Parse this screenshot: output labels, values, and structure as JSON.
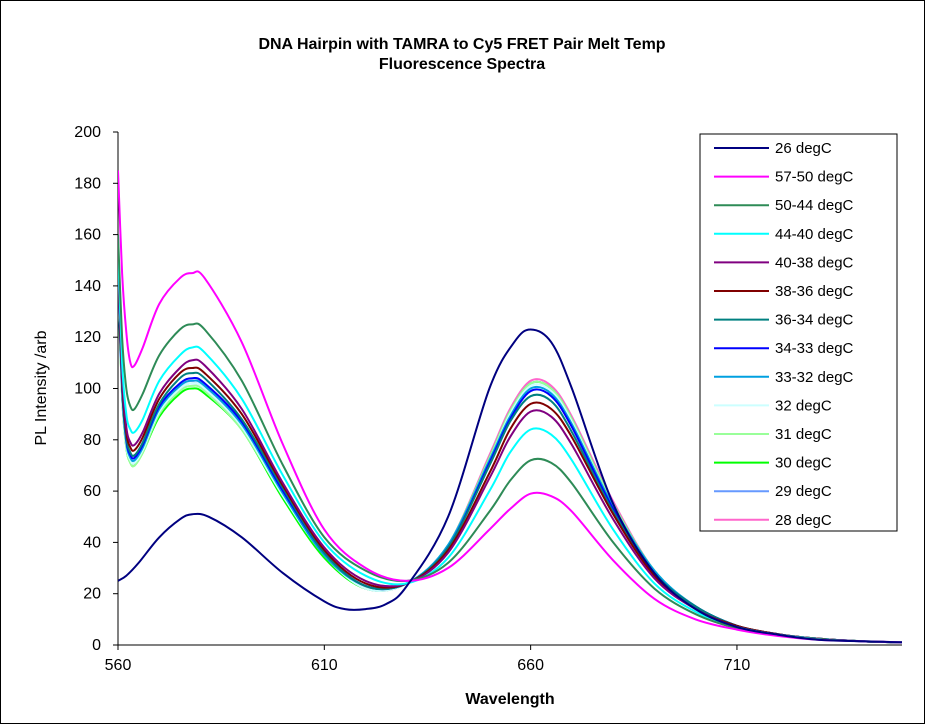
{
  "chart_data": {
    "type": "line",
    "title_line1": "DNA Hairpin  with  TAMRA  to Cy5 FRET Pair Melt Temp",
    "title_line2": "Fluorescence  Spectra",
    "xlabel": "Wavelength",
    "ylabel": "PL Intensity /arb",
    "xlim": [
      560,
      750
    ],
    "ylim": [
      0,
      200
    ],
    "x_ticks": [
      "560",
      "610",
      "660",
      "710"
    ],
    "y_ticks": [
      "0",
      "20",
      "40",
      "60",
      "80",
      "100",
      "120",
      "140",
      "160",
      "180",
      "200"
    ],
    "legend_position": "top-right",
    "grid": false,
    "series": [
      {
        "name": "26 degC",
        "color": "#000080",
        "x": [
          560,
          562,
          565,
          570,
          575,
          578,
          582,
          590,
          600,
          610,
          615,
          620,
          625,
          630,
          640,
          650,
          656,
          660,
          665,
          670,
          680,
          690,
          700,
          710,
          720,
          730,
          740,
          750
        ],
        "y": [
          25,
          27,
          32,
          42,
          49,
          51,
          50,
          42,
          28,
          17,
          14,
          14,
          16,
          23,
          50,
          100,
          118,
          123,
          118,
          100,
          55,
          28,
          14,
          7,
          4,
          2,
          1.5,
          1
        ]
      },
      {
        "name": "57-50 degC",
        "color": "#FF00FF",
        "x": [
          560,
          561,
          562,
          563,
          564,
          566,
          570,
          575,
          578,
          581,
          590,
          600,
          610,
          620,
          630,
          640,
          650,
          655,
          660,
          665,
          670,
          680,
          690,
          700,
          710,
          720,
          730,
          740,
          750
        ],
        "y": [
          185,
          145,
          122,
          110,
          109,
          116,
          133,
          143,
          145,
          143,
          118,
          78,
          45,
          30,
          25,
          30,
          45,
          53,
          59,
          58,
          52,
          33,
          18,
          10,
          6,
          3.5,
          2,
          1.5,
          1
        ]
      },
      {
        "name": "50-44 degC",
        "color": "#2E8B57",
        "x": [
          560,
          561,
          562,
          563,
          564,
          566,
          570,
          575,
          578,
          581,
          590,
          600,
          610,
          620,
          630,
          640,
          650,
          655,
          660,
          665,
          670,
          680,
          690,
          700,
          710,
          720,
          730,
          740,
          750
        ],
        "y": [
          160,
          120,
          100,
          93,
          92,
          98,
          113,
          123,
          125,
          123,
          103,
          70,
          42,
          29,
          25,
          32,
          52,
          64,
          72,
          71,
          63,
          40,
          22,
          12,
          6.5,
          3.8,
          2.2,
          1.5,
          1
        ]
      },
      {
        "name": "44-40 degC",
        "color": "#00FFFF",
        "x": [
          560,
          561,
          562,
          563,
          564,
          566,
          570,
          575,
          578,
          581,
          590,
          600,
          610,
          620,
          630,
          640,
          650,
          655,
          660,
          665,
          670,
          680,
          690,
          700,
          710,
          720,
          730,
          740,
          750
        ],
        "y": [
          155,
          110,
          90,
          84,
          83,
          88,
          103,
          113,
          116,
          114,
          96,
          66,
          40,
          27,
          24,
          34,
          60,
          75,
          84,
          82,
          72,
          45,
          24,
          13,
          7,
          4,
          2.3,
          1.5,
          1
        ]
      },
      {
        "name": "40-38 degC",
        "color": "#800080",
        "x": [
          560,
          561,
          562,
          563,
          564,
          566,
          570,
          575,
          578,
          581,
          590,
          600,
          610,
          620,
          630,
          640,
          650,
          655,
          660,
          665,
          670,
          680,
          690,
          700,
          710,
          720,
          730,
          740,
          750
        ],
        "y": [
          150,
          105,
          85,
          79,
          78,
          83,
          98,
          108,
          111,
          109,
          92,
          63,
          38,
          25,
          24,
          36,
          65,
          81,
          91,
          89,
          78,
          49,
          26,
          14,
          7,
          4,
          2.3,
          1.5,
          1
        ]
      },
      {
        "name": "38-36 degC",
        "color": "#800000",
        "x": [
          560,
          561,
          562,
          563,
          564,
          566,
          570,
          575,
          578,
          581,
          590,
          600,
          610,
          620,
          630,
          640,
          650,
          655,
          660,
          665,
          670,
          680,
          690,
          700,
          710,
          720,
          730,
          740,
          750
        ],
        "y": [
          148,
          103,
          83,
          77,
          76,
          81,
          96,
          106,
          108,
          106,
          90,
          62,
          37,
          24,
          24,
          37,
          67,
          84,
          94,
          92,
          81,
          51,
          27,
          14,
          7.5,
          4.2,
          2.4,
          1.5,
          1
        ]
      },
      {
        "name": "36-34 degC",
        "color": "#008080",
        "x": [
          560,
          561,
          562,
          563,
          564,
          566,
          570,
          575,
          578,
          581,
          590,
          600,
          610,
          620,
          630,
          640,
          650,
          655,
          660,
          665,
          670,
          680,
          690,
          700,
          710,
          720,
          730,
          740,
          750
        ],
        "y": [
          146,
          101,
          81,
          75,
          74,
          79,
          94,
          104,
          106,
          104,
          88,
          61,
          36,
          23,
          24,
          38,
          70,
          87,
          97,
          95,
          83,
          52,
          28,
          15,
          7.5,
          4.2,
          2.4,
          1.5,
          1
        ]
      },
      {
        "name": "34-33 degC",
        "color": "#0000FF",
        "x": [
          560,
          561,
          562,
          563,
          564,
          566,
          570,
          575,
          578,
          581,
          590,
          600,
          610,
          620,
          630,
          640,
          650,
          655,
          660,
          665,
          670,
          680,
          690,
          700,
          710,
          720,
          730,
          740,
          750
        ],
        "y": [
          145,
          100,
          80,
          74,
          73,
          78,
          93,
          102,
          104,
          102,
          87,
          60,
          36,
          23,
          24,
          38,
          71,
          88,
          99,
          97,
          85,
          53,
          28,
          15,
          7.5,
          4.2,
          2.4,
          1.5,
          1
        ]
      },
      {
        "name": "33-32 degC",
        "color": "#00A0E0",
        "x": [
          560,
          561,
          562,
          563,
          564,
          566,
          570,
          575,
          578,
          581,
          590,
          600,
          610,
          620,
          630,
          640,
          650,
          655,
          660,
          665,
          670,
          680,
          690,
          700,
          710,
          720,
          730,
          740,
          750
        ],
        "y": [
          144,
          99,
          79,
          73,
          72,
          77,
          92,
          101,
          103,
          101,
          86,
          59,
          35,
          23,
          24,
          39,
          72,
          89,
          100,
          98,
          86,
          54,
          29,
          15,
          7.5,
          4.2,
          2.4,
          1.5,
          1
        ]
      },
      {
        "name": "32 degC",
        "color": "#CCFFFF",
        "x": [
          560,
          561,
          562,
          563,
          564,
          566,
          570,
          575,
          578,
          581,
          590,
          600,
          610,
          620,
          630,
          640,
          650,
          655,
          660,
          665,
          670,
          680,
          690,
          700,
          710,
          720,
          730,
          740,
          750
        ],
        "y": [
          143,
          98,
          78,
          72,
          71,
          76,
          91,
          100,
          102,
          100,
          85,
          58,
          35,
          22,
          24,
          39,
          72,
          90,
          101,
          99,
          87,
          54,
          29,
          15,
          7.5,
          4.2,
          2.4,
          1.5,
          1
        ]
      },
      {
        "name": "31 degC",
        "color": "#99FF99",
        "x": [
          560,
          561,
          562,
          563,
          564,
          566,
          570,
          575,
          578,
          581,
          590,
          600,
          610,
          620,
          630,
          640,
          650,
          655,
          660,
          665,
          670,
          680,
          690,
          700,
          710,
          720,
          730,
          740,
          750
        ],
        "y": [
          142,
          97,
          77,
          71,
          70,
          75,
          90,
          99,
          101,
          99,
          84,
          58,
          35,
          22,
          24,
          39,
          73,
          91,
          102,
          100,
          88,
          55,
          29,
          15,
          7.5,
          4.2,
          2.4,
          1.5,
          1
        ]
      },
      {
        "name": "30 degC",
        "color": "#00FF00",
        "x": [
          560,
          561,
          562,
          563,
          564,
          566,
          570,
          575,
          578,
          581,
          590,
          600,
          610,
          620,
          630,
          640,
          650,
          655,
          660,
          665,
          670,
          680,
          690,
          700,
          710,
          720,
          730,
          740,
          750
        ],
        "y": [
          142,
          97,
          77,
          71,
          70,
          75,
          89,
          98,
          100,
          98,
          84,
          57,
          34,
          22,
          24,
          39,
          73,
          91,
          102,
          100,
          88,
          55,
          29,
          15,
          7.5,
          4.2,
          2.4,
          1.5,
          1
        ]
      },
      {
        "name": "29 degC",
        "color": "#6699FF",
        "x": [
          560,
          561,
          562,
          563,
          564,
          566,
          570,
          575,
          578,
          581,
          590,
          600,
          610,
          620,
          630,
          640,
          650,
          655,
          660,
          665,
          670,
          680,
          690,
          700,
          710,
          720,
          730,
          740,
          750
        ],
        "y": [
          143,
          98,
          78,
          72,
          71,
          76,
          91,
          100,
          102,
          100,
          85,
          58,
          35,
          22,
          24,
          39,
          73,
          91,
          102,
          100,
          88,
          55,
          29,
          15,
          7.5,
          4.2,
          2.4,
          1.5,
          1
        ]
      },
      {
        "name": "28 degC",
        "color": "#FF66CC",
        "x": [
          560,
          561,
          562,
          563,
          564,
          566,
          570,
          575,
          578,
          581,
          590,
          600,
          610,
          620,
          630,
          640,
          650,
          655,
          660,
          665,
          670,
          680,
          690,
          700,
          710,
          720,
          730,
          740,
          750
        ],
        "y": [
          143,
          98,
          78,
          72,
          71,
          76,
          91,
          101,
          103,
          101,
          85,
          58,
          35,
          22,
          24,
          39,
          74,
          92,
          103,
          101,
          89,
          56,
          29,
          15,
          7.5,
          4.2,
          2.4,
          1.5,
          1
        ]
      }
    ]
  }
}
